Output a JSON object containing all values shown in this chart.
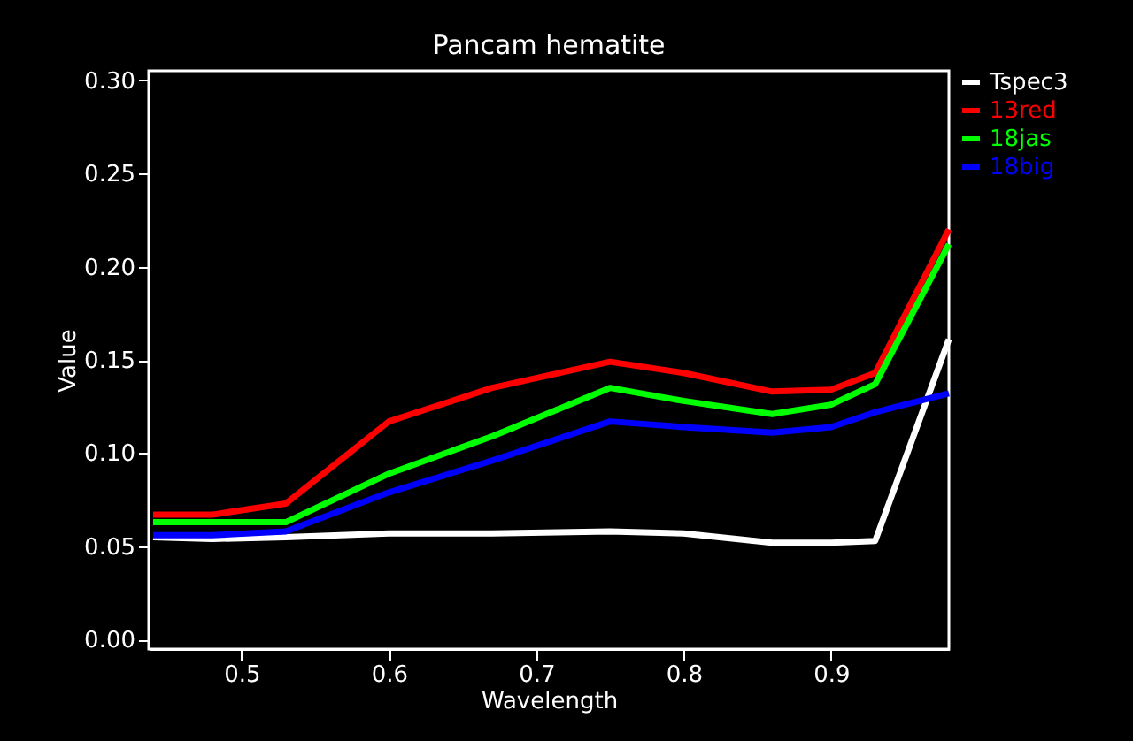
{
  "chart_data": {
    "type": "line",
    "title": "Pancam hematite",
    "xlabel": "Wavelength",
    "ylabel": "Value",
    "x": [
      0.44,
      0.48,
      0.53,
      0.6,
      0.67,
      0.75,
      0.8,
      0.86,
      0.9,
      0.93,
      0.98
    ],
    "series": [
      {
        "name": "Tspec3",
        "color": "#ffffff",
        "values": [
          0.055,
          0.054,
          0.055,
          0.057,
          0.057,
          0.058,
          0.057,
          0.052,
          0.052,
          0.053,
          0.161
        ]
      },
      {
        "name": "13red",
        "color": "#ff0000",
        "values": [
          0.067,
          0.067,
          0.073,
          0.117,
          0.135,
          0.149,
          0.143,
          0.133,
          0.134,
          0.143,
          0.22
        ]
      },
      {
        "name": "18jas",
        "color": "#00ff00",
        "values": [
          0.063,
          0.063,
          0.063,
          0.089,
          0.109,
          0.135,
          0.128,
          0.121,
          0.126,
          0.137,
          0.212
        ]
      },
      {
        "name": "18big",
        "color": "#0000ff",
        "values": [
          0.056,
          0.056,
          0.058,
          0.079,
          0.096,
          0.117,
          0.114,
          0.111,
          0.114,
          0.122,
          0.132
        ]
      }
    ],
    "xlim": [
      0.437,
      0.98
    ],
    "xticks": [
      0.5,
      0.6,
      0.7,
      0.8,
      0.9
    ],
    "ylim": [
      -0.005,
      0.305
    ],
    "yticks": [
      {
        "value": 0,
        "label": "0.00"
      },
      {
        "value": 0.05,
        "label": "0.05"
      },
      {
        "value": 0.1,
        "label": "0.10"
      },
      {
        "value": 0.15,
        "label": "0.15"
      },
      {
        "value": 0.2,
        "label": "0.20"
      },
      {
        "value": 0.25,
        "label": "0.25"
      },
      {
        "value": 0.3,
        "label": "0.30"
      }
    ],
    "grid": false,
    "legend": "top right",
    "line_style": "solid",
    "marker": "none"
  }
}
